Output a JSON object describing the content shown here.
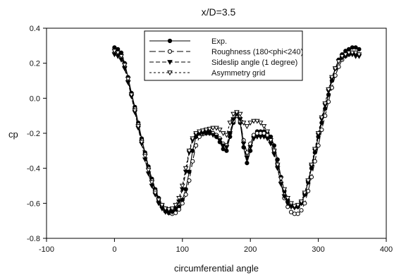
{
  "chart_data": {
    "type": "line",
    "title": "x/D=3.5",
    "xlabel": "circumferential angle",
    "ylabel": "cp",
    "xlim": [
      -100,
      400
    ],
    "ylim": [
      -0.8,
      0.4
    ],
    "xticks": [
      "-100",
      "0",
      "100",
      "200",
      "300",
      "400"
    ],
    "yticks": [
      "-0.8",
      "-0.6",
      "-0.4",
      "-0.2",
      "0.0",
      "0.2",
      "0.4"
    ],
    "grid": false,
    "legend_position": "top-center",
    "series": [
      {
        "name": "Exp.",
        "color": "#000000",
        "line": "solid",
        "marker": "filled-circle",
        "x": [
          0,
          5,
          10,
          15,
          20,
          25,
          30,
          35,
          40,
          45,
          50,
          55,
          60,
          65,
          70,
          75,
          80,
          85,
          90,
          95,
          100,
          105,
          110,
          115,
          120,
          125,
          130,
          135,
          140,
          145,
          150,
          155,
          160,
          165,
          170,
          175,
          180,
          185,
          190,
          195,
          200,
          205,
          210,
          215,
          220,
          225,
          230,
          235,
          240,
          245,
          250,
          255,
          260,
          265,
          270,
          275,
          280,
          285,
          290,
          295,
          300,
          305,
          310,
          315,
          320,
          325,
          330,
          335,
          340,
          345,
          350,
          355,
          360
        ],
        "y": [
          0.29,
          0.28,
          0.26,
          0.2,
          0.12,
          0.03,
          -0.05,
          -0.14,
          -0.23,
          -0.31,
          -0.39,
          -0.46,
          -0.52,
          -0.57,
          -0.61,
          -0.63,
          -0.64,
          -0.645,
          -0.64,
          -0.62,
          -0.58,
          -0.52,
          -0.42,
          -0.3,
          -0.22,
          -0.2,
          -0.195,
          -0.19,
          -0.19,
          -0.2,
          -0.22,
          -0.25,
          -0.29,
          -0.3,
          -0.22,
          -0.14,
          -0.1,
          -0.14,
          -0.28,
          -0.37,
          -0.3,
          -0.22,
          -0.19,
          -0.19,
          -0.19,
          -0.2,
          -0.22,
          -0.27,
          -0.35,
          -0.45,
          -0.53,
          -0.58,
          -0.61,
          -0.62,
          -0.62,
          -0.6,
          -0.55,
          -0.48,
          -0.4,
          -0.31,
          -0.22,
          -0.14,
          -0.06,
          0.02,
          0.1,
          0.17,
          0.22,
          0.25,
          0.27,
          0.28,
          0.29,
          0.29,
          0.28
        ]
      },
      {
        "name": "Roughness (180<phi<240)",
        "color": "#000000",
        "line": "long-dash",
        "marker": "open-circle",
        "x": [
          0,
          5,
          10,
          15,
          20,
          25,
          30,
          35,
          40,
          45,
          50,
          55,
          60,
          65,
          70,
          75,
          80,
          85,
          90,
          95,
          100,
          105,
          110,
          115,
          120,
          125,
          130,
          135,
          140,
          145,
          150,
          155,
          160,
          165,
          170,
          175,
          180,
          185,
          190,
          195,
          200,
          205,
          210,
          215,
          220,
          225,
          230,
          235,
          240,
          245,
          250,
          255,
          260,
          265,
          270,
          275,
          280,
          285,
          290,
          295,
          300,
          305,
          310,
          315,
          320,
          325,
          330,
          335,
          340,
          345,
          350,
          355,
          360
        ],
        "y": [
          0.26,
          0.25,
          0.23,
          0.18,
          0.1,
          0.02,
          -0.06,
          -0.15,
          -0.24,
          -0.32,
          -0.4,
          -0.47,
          -0.53,
          -0.58,
          -0.62,
          -0.645,
          -0.655,
          -0.66,
          -0.655,
          -0.635,
          -0.6,
          -0.55,
          -0.47,
          -0.36,
          -0.27,
          -0.22,
          -0.205,
          -0.2,
          -0.2,
          -0.2,
          -0.21,
          -0.23,
          -0.26,
          -0.27,
          -0.2,
          -0.13,
          -0.1,
          -0.13,
          -0.24,
          -0.31,
          -0.26,
          -0.21,
          -0.2,
          -0.2,
          -0.2,
          -0.21,
          -0.24,
          -0.3,
          -0.38,
          -0.48,
          -0.57,
          -0.62,
          -0.65,
          -0.66,
          -0.66,
          -0.64,
          -0.6,
          -0.53,
          -0.45,
          -0.36,
          -0.27,
          -0.18,
          -0.1,
          -0.02,
          0.06,
          0.13,
          0.18,
          0.22,
          0.24,
          0.25,
          0.26,
          0.26,
          0.25
        ]
      },
      {
        "name": "Sideslip angle (1 degree)",
        "color": "#000000",
        "line": "dash",
        "marker": "filled-triangle-down",
        "x": [
          0,
          5,
          10,
          15,
          20,
          25,
          30,
          35,
          40,
          45,
          50,
          55,
          60,
          65,
          70,
          75,
          80,
          85,
          90,
          95,
          100,
          105,
          110,
          115,
          120,
          125,
          130,
          135,
          140,
          145,
          150,
          155,
          160,
          165,
          170,
          175,
          180,
          185,
          190,
          195,
          200,
          205,
          210,
          215,
          220,
          225,
          230,
          235,
          240,
          245,
          250,
          255,
          260,
          265,
          270,
          275,
          280,
          285,
          290,
          295,
          300,
          305,
          310,
          315,
          320,
          325,
          330,
          335,
          340,
          345,
          350,
          355,
          360
        ],
        "y": [
          0.25,
          0.24,
          0.22,
          0.17,
          0.09,
          0.01,
          -0.08,
          -0.17,
          -0.26,
          -0.35,
          -0.43,
          -0.5,
          -0.55,
          -0.6,
          -0.63,
          -0.65,
          -0.655,
          -0.65,
          -0.63,
          -0.59,
          -0.52,
          -0.42,
          -0.31,
          -0.24,
          -0.21,
          -0.2,
          -0.2,
          -0.2,
          -0.2,
          -0.21,
          -0.22,
          -0.24,
          -0.27,
          -0.28,
          -0.2,
          -0.12,
          -0.09,
          -0.12,
          -0.26,
          -0.34,
          -0.28,
          -0.23,
          -0.22,
          -0.22,
          -0.22,
          -0.23,
          -0.26,
          -0.32,
          -0.4,
          -0.49,
          -0.56,
          -0.6,
          -0.62,
          -0.625,
          -0.62,
          -0.6,
          -0.55,
          -0.48,
          -0.39,
          -0.3,
          -0.21,
          -0.12,
          -0.04,
          0.04,
          0.11,
          0.17,
          0.21,
          0.23,
          0.24,
          0.25,
          0.25,
          0.24,
          0.24
        ]
      },
      {
        "name": "Asymmetry grid",
        "color": "#000000",
        "line": "short-dash",
        "marker": "open-triangle-down",
        "x": [
          0,
          5,
          10,
          15,
          20,
          25,
          30,
          35,
          40,
          45,
          50,
          55,
          60,
          65,
          70,
          75,
          80,
          85,
          90,
          95,
          100,
          105,
          110,
          115,
          120,
          125,
          130,
          135,
          140,
          145,
          150,
          155,
          160,
          165,
          170,
          175,
          180,
          185,
          190,
          195,
          200,
          205,
          210,
          215,
          220,
          225,
          230,
          235,
          240,
          245,
          250,
          255,
          260,
          265,
          270,
          275,
          280,
          285,
          290,
          295,
          300,
          305,
          310,
          315,
          320,
          325,
          330,
          335,
          340,
          345,
          350,
          355,
          360
        ],
        "y": [
          0.27,
          0.26,
          0.24,
          0.19,
          0.11,
          0.02,
          -0.07,
          -0.16,
          -0.25,
          -0.33,
          -0.41,
          -0.48,
          -0.54,
          -0.58,
          -0.61,
          -0.63,
          -0.635,
          -0.63,
          -0.61,
          -0.57,
          -0.5,
          -0.4,
          -0.3,
          -0.23,
          -0.2,
          -0.19,
          -0.185,
          -0.18,
          -0.175,
          -0.17,
          -0.17,
          -0.18,
          -0.2,
          -0.21,
          -0.14,
          -0.09,
          -0.08,
          -0.09,
          -0.14,
          -0.16,
          -0.14,
          -0.13,
          -0.13,
          -0.14,
          -0.16,
          -0.19,
          -0.24,
          -0.3,
          -0.38,
          -0.46,
          -0.52,
          -0.57,
          -0.6,
          -0.615,
          -0.61,
          -0.59,
          -0.54,
          -0.47,
          -0.38,
          -0.29,
          -0.2,
          -0.11,
          -0.03,
          0.05,
          0.12,
          0.17,
          0.21,
          0.24,
          0.25,
          0.26,
          0.26,
          0.26,
          0.25
        ]
      }
    ]
  }
}
